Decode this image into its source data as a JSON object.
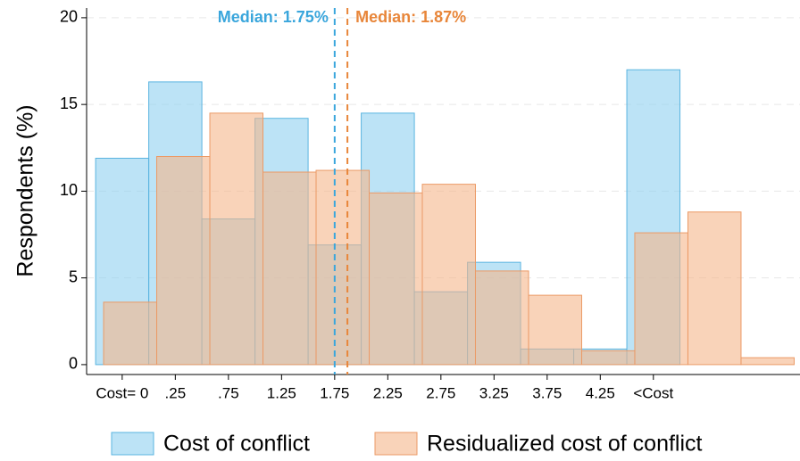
{
  "chart_data": {
    "type": "histogram",
    "ylabel": "Respondents (%)",
    "xlim": [
      -0.67,
      12.76
    ],
    "ylim": [
      -0.57,
      20.56
    ],
    "yticks": [
      0,
      5,
      10,
      15,
      20
    ],
    "xticks": [
      {
        "value": 0,
        "label": "Cost= 0"
      },
      {
        "value": 1,
        "label": ".25"
      },
      {
        "value": 2,
        "label": ".75"
      },
      {
        "value": 3,
        "label": "1.25"
      },
      {
        "value": 4,
        "label": "1.75"
      },
      {
        "value": 5,
        "label": "2.25"
      },
      {
        "value": 6,
        "label": "2.75"
      },
      {
        "value": 7,
        "label": "3.25"
      },
      {
        "value": 8,
        "label": "3.75"
      },
      {
        "value": 9,
        "label": "4.25"
      },
      {
        "value": 10,
        "label": "<Cost"
      }
    ],
    "grid": true,
    "series": [
      {
        "name": "Cost of conflict",
        "color": "#8fd0f0",
        "edge_color": "#5ab4e0",
        "bins": [
          -0.5,
          0.5,
          1.5,
          2.5,
          3.5,
          4.5,
          5.5,
          6.5,
          7.5,
          8.5,
          9.5,
          10.5
        ],
        "values": [
          11.9,
          16.3,
          8.4,
          14.2,
          6.9,
          14.5,
          4.2,
          5.9,
          0.9,
          0.9,
          17.0
        ]
      },
      {
        "name": "Residualized cost of conflict",
        "color": "#f5b68a",
        "edge_color": "#eb9a66",
        "bins": [
          -0.35,
          0.65,
          1.65,
          2.65,
          3.65,
          4.65,
          5.65,
          6.65,
          7.65,
          8.65,
          9.65,
          10.65,
          11.65,
          12.65
        ],
        "values": [
          3.6,
          12.0,
          14.5,
          11.1,
          11.2,
          9.9,
          10.4,
          5.4,
          4.0,
          0.8,
          7.6,
          8.8,
          0.4
        ]
      }
    ],
    "vlines": [
      {
        "x": 4,
        "label": "Median: 1.75%",
        "color": "#3aa6dc"
      },
      {
        "x": 4.24,
        "label": "Median: 1.87%",
        "color": "#e8863a"
      }
    ]
  }
}
